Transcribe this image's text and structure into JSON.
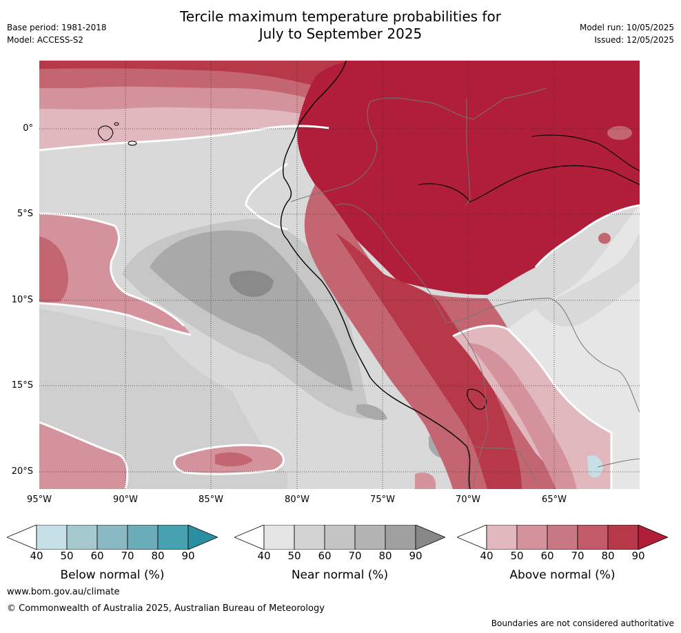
{
  "header": {
    "title_line1": "Tercile maximum temperature probabilities for",
    "title_line2": "July to September 2025",
    "base_period": "Base period: 1981-2018",
    "model": "Model: ACCESS-S2",
    "model_run": "Model run: 10/05/2025",
    "issued": "Issued: 12/05/2025"
  },
  "map": {
    "lat_labels": [
      "0°",
      "5°S",
      "10°S",
      "15°S",
      "20°S"
    ],
    "lon_labels": [
      "95°W",
      "90°W",
      "85°W",
      "80°W",
      "75°W",
      "70°W",
      "65°W"
    ],
    "colors": {
      "ocean_near_normal": "#d9d9d9",
      "near_normal_50": "#c6c6c6",
      "near_normal_60": "#a9a9a9",
      "near_normal_70": "#8a8a8a",
      "above_40": "#e0b8be",
      "above_50": "#d4929c",
      "above_60": "#c46672",
      "above_70": "#b73848",
      "above_80": "#b01e3a",
      "neutral_land": "#e6e6e6",
      "below_40": "#c6e0e6"
    }
  },
  "colorbars": [
    {
      "label": "Below normal (%)",
      "ticks": [
        "40",
        "50",
        "60",
        "70",
        "80",
        "90"
      ],
      "colors": [
        "#ffffff",
        "#c6e0e6",
        "#a6c9ce",
        "#89b7c2",
        "#6aacb8",
        "#48a1b0",
        "#2b8ea1"
      ]
    },
    {
      "label": "Near normal (%)",
      "ticks": [
        "40",
        "50",
        "60",
        "70",
        "80",
        "90"
      ],
      "colors": [
        "#ffffff",
        "#e4e4e4",
        "#d3d3d3",
        "#c4c4c4",
        "#b3b3b3",
        "#a0a0a0",
        "#878787"
      ]
    },
    {
      "label": "Above normal (%)",
      "ticks": [
        "40",
        "50",
        "60",
        "70",
        "80",
        "90"
      ],
      "colors": [
        "#ffffff",
        "#e0b8be",
        "#d4929c",
        "#c87882",
        "#c25a68",
        "#b73848",
        "#b01e3a"
      ]
    }
  ],
  "footer": {
    "url": "www.bom.gov.au/climate",
    "copyright": "© Commonwealth of Australia 2025, Australian Bureau of Meteorology",
    "disclaimer": "Boundaries are not considered authoritative"
  }
}
